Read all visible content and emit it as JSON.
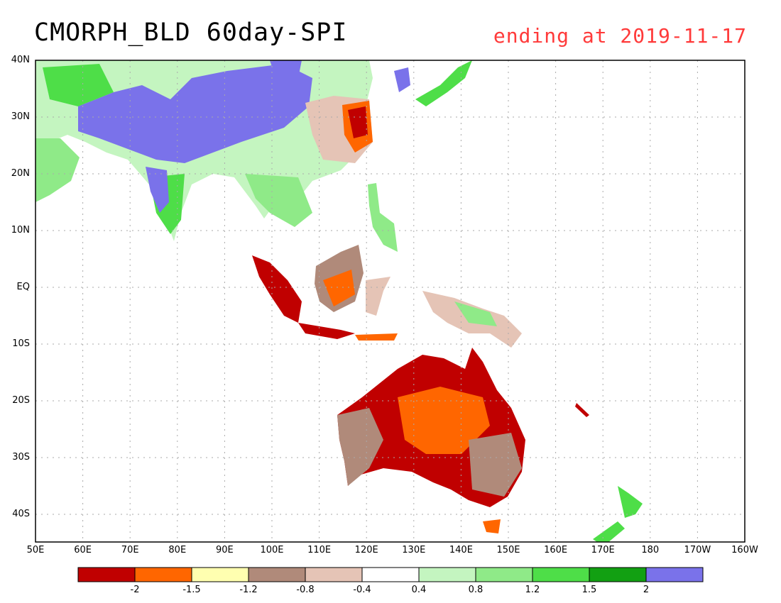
{
  "title": "CMORPH_BLD 60day-SPI",
  "date_text": "ending at 2019-11-17",
  "lat_labels": [
    "40N",
    "30N",
    "20N",
    "10N",
    "EQ",
    "10S",
    "20S",
    "30S",
    "40S"
  ],
  "lon_labels": [
    "50E",
    "60E",
    "70E",
    "80E",
    "90E",
    "100E",
    "110E",
    "120E",
    "130E",
    "140E",
    "150E",
    "160E",
    "170E",
    "180",
    "170W",
    "160W"
  ],
  "colorbar": {
    "colors": [
      "#c00000",
      "#ff6600",
      "#ffffb0",
      "#b08a7a",
      "#e5c4b6",
      "#ffffff",
      "#c4f5c0",
      "#8fea88",
      "#4ede48",
      "#12a012",
      "#7a72ea"
    ],
    "labels": [
      "-2",
      "-1.5",
      "-1.2",
      "-0.8",
      "-0.4",
      "0.4",
      "0.8",
      "1.2",
      "1.5",
      "2"
    ]
  },
  "colors": {
    "frame": "#000000",
    "grid": "#aaaaaa",
    "coast": "#000000"
  }
}
